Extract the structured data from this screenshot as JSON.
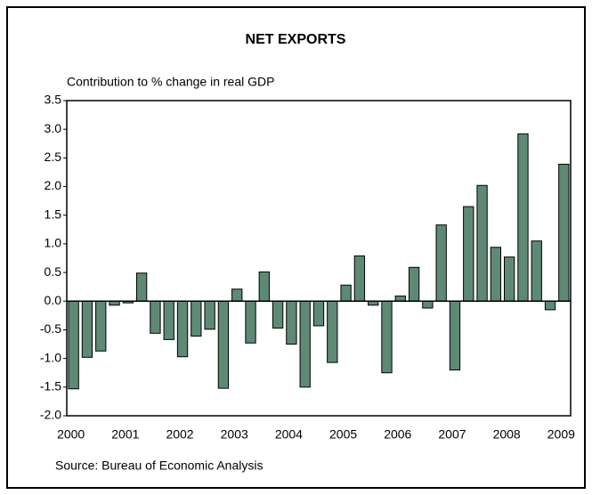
{
  "chart_data": {
    "type": "bar",
    "title": "NET EXPORTS",
    "subtitle": "Contribution to % change in real GDP",
    "source": "Source: Bureau of Economic Analysis",
    "categories": [
      "2000",
      null,
      null,
      null,
      "2001",
      null,
      null,
      null,
      "2002",
      null,
      null,
      null,
      "2003",
      null,
      null,
      null,
      "2004",
      null,
      null,
      null,
      "2005",
      null,
      null,
      null,
      "2006",
      null,
      null,
      null,
      "2007",
      null,
      null,
      null,
      "2008",
      null,
      null,
      null,
      "2009"
    ],
    "values": [
      -1.53,
      -0.98,
      -0.87,
      -0.07,
      -0.03,
      0.49,
      -0.56,
      -0.67,
      -0.97,
      -0.61,
      -0.49,
      -1.52,
      0.21,
      -0.73,
      0.51,
      -0.47,
      -0.75,
      -1.5,
      -0.43,
      -1.07,
      0.28,
      0.79,
      -0.07,
      -1.25,
      0.09,
      0.59,
      -0.12,
      1.33,
      -1.2,
      1.65,
      2.02,
      0.94,
      0.77,
      2.92,
      1.05,
      -0.15,
      2.39
    ],
    "color": "#5e8a75",
    "ylim": [
      -2,
      3.5
    ],
    "yticks": [
      {
        "value": -2,
        "label": "-2.0"
      },
      -1.5,
      {
        "value": -1,
        "label": "-1.0"
      },
      -0.5,
      {
        "value": 0,
        "label": "0.0"
      },
      0.5,
      {
        "value": 1,
        "label": "1.0"
      },
      1.5,
      {
        "value": 2,
        "label": "2.0"
      },
      2.5,
      {
        "value": 3,
        "label": "3.0"
      },
      3.5
    ],
    "grid": false
  }
}
